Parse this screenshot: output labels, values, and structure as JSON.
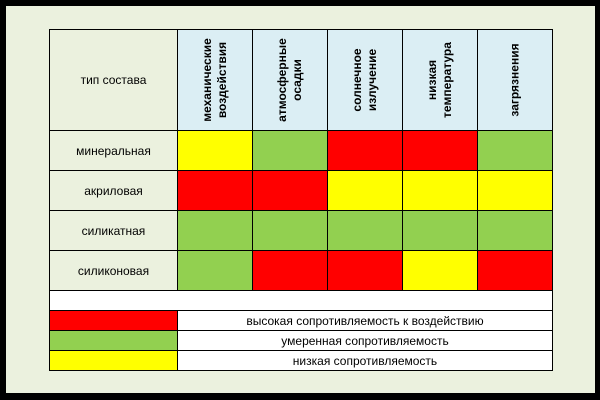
{
  "colors": {
    "high": "#ff0000",
    "moderate": "#92d050",
    "low": "#ffff00",
    "header_bg": "#dbeef4",
    "panel_bg": "#ebf1de"
  },
  "table": {
    "corner_label": "тип состава",
    "columns": [
      "механические\nвоздействия",
      "атмосферные\nосадки",
      "солнечное\nизлучение",
      "низкая\nтемпература",
      "загрязнения"
    ],
    "rows": [
      {
        "label": "минеральная",
        "levels": [
          "low",
          "moderate",
          "high",
          "high",
          "moderate"
        ]
      },
      {
        "label": "акриловая",
        "levels": [
          "high",
          "high",
          "low",
          "low",
          "low"
        ]
      },
      {
        "label": "силикатная",
        "levels": [
          "moderate",
          "moderate",
          "moderate",
          "moderate",
          "moderate"
        ]
      },
      {
        "label": "силиконовая",
        "levels": [
          "moderate",
          "high",
          "high",
          "low",
          "high"
        ]
      }
    ]
  },
  "legend": [
    {
      "level": "high",
      "label": "высокая сопротивляемость к воздействию"
    },
    {
      "level": "moderate",
      "label": "умеренная сопротивляемость"
    },
    {
      "level": "low",
      "label": "низкая сопротивляемость"
    }
  ]
}
